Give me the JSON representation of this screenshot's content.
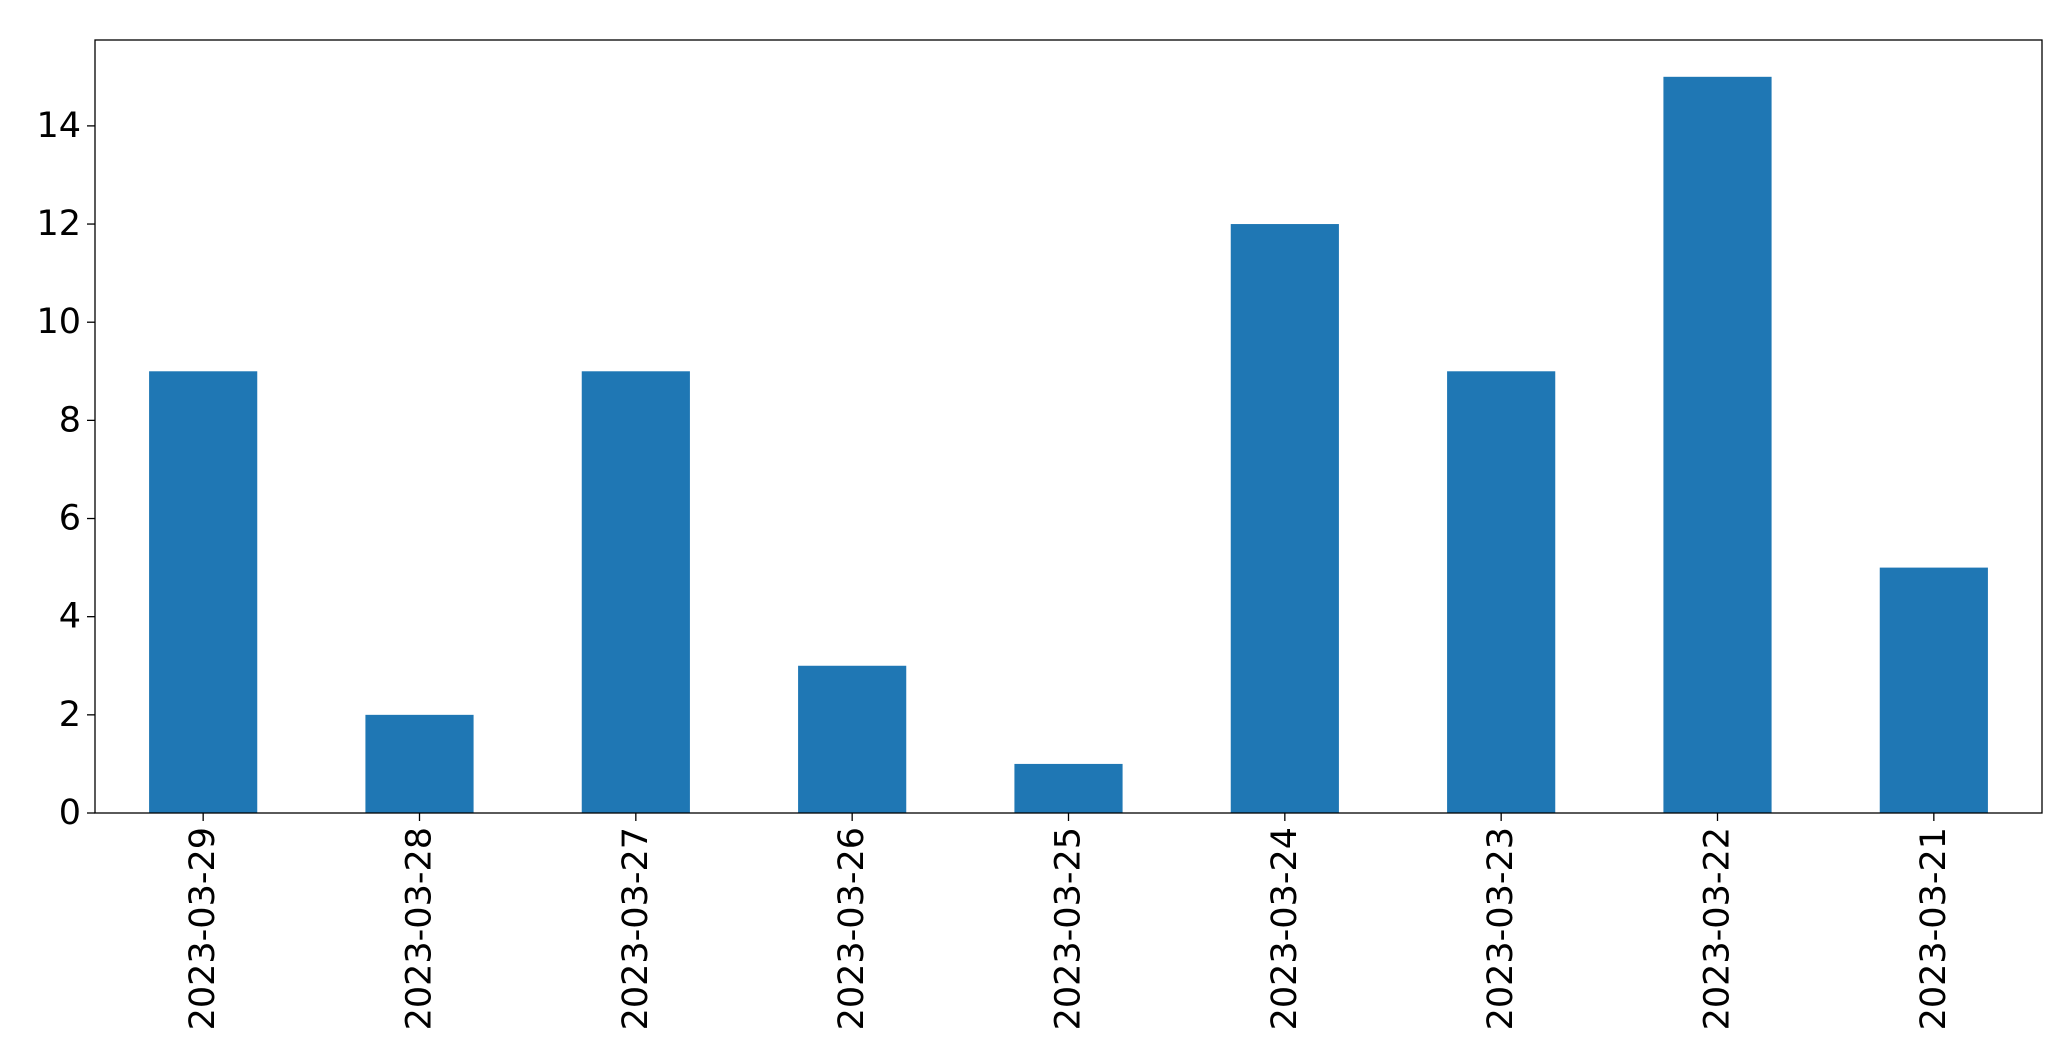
{
  "chart_data": {
    "type": "bar",
    "categories": [
      "2023-03-29",
      "2023-03-28",
      "2023-03-27",
      "2023-03-26",
      "2023-03-25",
      "2023-03-24",
      "2023-03-23",
      "2023-03-22",
      "2023-03-21"
    ],
    "values": [
      9,
      2,
      9,
      3,
      1,
      12,
      9,
      15,
      5
    ],
    "ylim": [
      0,
      15.75
    ],
    "yticks": [
      0,
      2,
      4,
      6,
      8,
      10,
      12,
      14
    ],
    "grid": false,
    "bar_color": "#1f77b4"
  }
}
